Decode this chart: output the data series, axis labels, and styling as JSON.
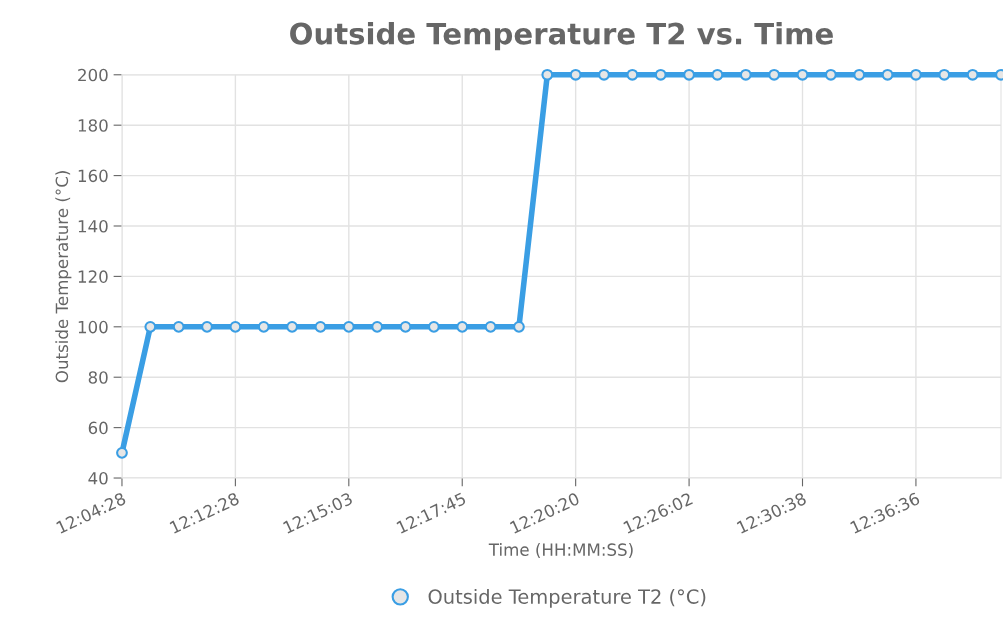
{
  "chart_data": {
    "type": "line",
    "title": "Outside Temperature T2 vs. Time",
    "xlabel": "Time (HH:MM:SS)",
    "ylabel": "Outside Temperature (°C)",
    "categories": [
      "12:04:28",
      null,
      null,
      null,
      "12:12:28",
      null,
      null,
      null,
      "12:15:03",
      null,
      null,
      null,
      "12:17:45",
      null,
      null,
      null,
      "12:20:20",
      null,
      null,
      null,
      "12:26:02",
      null,
      null,
      null,
      "12:30:38",
      null,
      null,
      null,
      "12:36:36",
      null,
      null,
      null
    ],
    "series": [
      {
        "name": "Outside Temperature T2 (°C)",
        "color": "#3a9ee4",
        "values": [
          50,
          100,
          100,
          100,
          100,
          100,
          100,
          100,
          100,
          100,
          100,
          100,
          100,
          100,
          100,
          200,
          200,
          200,
          200,
          200,
          200,
          200,
          200,
          200,
          200,
          200,
          200,
          200,
          200,
          200,
          200,
          200
        ]
      }
    ],
    "ylim": [
      40,
      200
    ],
    "yticks": [
      40,
      60,
      80,
      100,
      120,
      140,
      160,
      180,
      200
    ],
    "grid": true,
    "legend": "bottom",
    "marker": "circle",
    "line_style": "solid"
  }
}
